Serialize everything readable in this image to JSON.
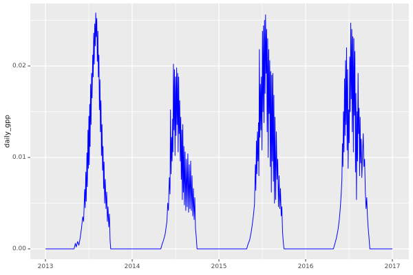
{
  "chart_data": {
    "type": "line",
    "title": "",
    "xlabel": "",
    "ylabel": "daily_gpp",
    "x_ticks": [
      "2013",
      "2014",
      "2015",
      "2016",
      "2017"
    ],
    "x_tick_values": [
      2013,
      2014,
      2015,
      2016,
      2017
    ],
    "y_ticks": [
      "0.00",
      "0.01",
      "0.02"
    ],
    "y_tick_values": [
      0,
      0.01,
      0.02
    ],
    "xlim": [
      2012.825,
      2017.19
    ],
    "ylim": [
      -0.00113,
      0.02684
    ],
    "grid": "major-and-minor",
    "minor_x": [
      2013.5,
      2014.5,
      2015.5,
      2016.5
    ],
    "minor_y": [
      0.005,
      0.015,
      0.025
    ],
    "legend": "none",
    "colors": {
      "panel_bg": "#EBEBEB",
      "grid": "#FFFFFF",
      "line": "#0000FF",
      "tick_mark": "#333333",
      "tick_label": "#4D4D4D",
      "axis_title": "#111111"
    },
    "series": [
      {
        "name": "daily_gpp",
        "points": [
          [
            2013.0,
            0
          ],
          [
            2013.33,
            0
          ],
          [
            2013.345,
            0.0006
          ],
          [
            2013.355,
            0.0002
          ],
          [
            2013.37,
            0.0008
          ],
          [
            2013.385,
            0.0004
          ],
          [
            2013.4,
            0.0012
          ],
          [
            2013.415,
            0.0022
          ],
          [
            2013.43,
            0.0035
          ],
          [
            2013.44,
            0.003
          ],
          [
            2013.452,
            0.0065
          ],
          [
            2013.458,
            0.0045
          ],
          [
            2013.465,
            0.0084
          ],
          [
            2013.47,
            0.0052
          ],
          [
            2013.478,
            0.0105
          ],
          [
            2013.483,
            0.0068
          ],
          [
            2013.49,
            0.013
          ],
          [
            2013.495,
            0.0088
          ],
          [
            2013.5,
            0.0145
          ],
          [
            2013.505,
            0.0092
          ],
          [
            2013.51,
            0.0158
          ],
          [
            2013.515,
            0.0112
          ],
          [
            2013.52,
            0.018
          ],
          [
            2013.526,
            0.0136
          ],
          [
            2013.532,
            0.0192
          ],
          [
            2013.538,
            0.0165
          ],
          [
            2013.545,
            0.0212
          ],
          [
            2013.55,
            0.0188
          ],
          [
            2013.556,
            0.0236
          ],
          [
            2013.562,
            0.0202
          ],
          [
            2013.568,
            0.0246
          ],
          [
            2013.574,
            0.0222
          ],
          [
            2013.58,
            0.0258
          ],
          [
            2013.586,
            0.0232
          ],
          [
            2013.592,
            0.0252
          ],
          [
            2013.598,
            0.0205
          ],
          [
            2013.604,
            0.0238
          ],
          [
            2013.61,
            0.0188
          ],
          [
            2013.616,
            0.0212
          ],
          [
            2013.622,
            0.0152
          ],
          [
            2013.628,
            0.0185
          ],
          [
            2013.634,
            0.0128
          ],
          [
            2013.64,
            0.0162
          ],
          [
            2013.646,
            0.0102
          ],
          [
            2013.652,
            0.0136
          ],
          [
            2013.658,
            0.0086
          ],
          [
            2013.664,
            0.0112
          ],
          [
            2013.67,
            0.0066
          ],
          [
            2013.676,
            0.0095
          ],
          [
            2013.682,
            0.005
          ],
          [
            2013.69,
            0.0076
          ],
          [
            2013.698,
            0.0044
          ],
          [
            2013.706,
            0.0062
          ],
          [
            2013.714,
            0.003
          ],
          [
            2013.722,
            0.0046
          ],
          [
            2013.73,
            0.0024
          ],
          [
            2013.738,
            0.0038
          ],
          [
            2013.745,
            0.001
          ],
          [
            2013.752,
            0.0
          ],
          [
            2014.33,
            0
          ],
          [
            2014.345,
            0.0005
          ],
          [
            2014.36,
            0.0009
          ],
          [
            2014.38,
            0.0016
          ],
          [
            2014.4,
            0.003
          ],
          [
            2014.41,
            0.005
          ],
          [
            2014.418,
            0.0042
          ],
          [
            2014.428,
            0.0078
          ],
          [
            2014.436,
            0.006
          ],
          [
            2014.442,
            0.0152
          ],
          [
            2014.448,
            0.0082
          ],
          [
            2014.454,
            0.0122
          ],
          [
            2014.46,
            0.0096
          ],
          [
            2014.466,
            0.0142
          ],
          [
            2014.47,
            0.0106
          ],
          [
            2014.476,
            0.0202
          ],
          [
            2014.482,
            0.013
          ],
          [
            2014.488,
            0.0196
          ],
          [
            2014.494,
            0.0102
          ],
          [
            2014.5,
            0.0188
          ],
          [
            2014.506,
            0.0124
          ],
          [
            2014.512,
            0.0198
          ],
          [
            2014.518,
            0.0136
          ],
          [
            2014.524,
            0.0192
          ],
          [
            2014.53,
            0.0106
          ],
          [
            2014.536,
            0.0188
          ],
          [
            2014.542,
            0.0126
          ],
          [
            2014.548,
            0.0162
          ],
          [
            2014.554,
            0.0096
          ],
          [
            2014.56,
            0.0144
          ],
          [
            2014.566,
            0.0076
          ],
          [
            2014.572,
            0.013
          ],
          [
            2014.578,
            0.0054
          ],
          [
            2014.584,
            0.0136
          ],
          [
            2014.59,
            0.0062
          ],
          [
            2014.596,
            0.0112
          ],
          [
            2014.602,
            0.0048
          ],
          [
            2014.61,
            0.0106
          ],
          [
            2014.618,
            0.0042
          ],
          [
            2014.626,
            0.0098
          ],
          [
            2014.634,
            0.0046
          ],
          [
            2014.642,
            0.0104
          ],
          [
            2014.65,
            0.004
          ],
          [
            2014.658,
            0.0092
          ],
          [
            2014.666,
            0.0044
          ],
          [
            2014.674,
            0.0096
          ],
          [
            2014.682,
            0.0042
          ],
          [
            2014.69,
            0.008
          ],
          [
            2014.698,
            0.0036
          ],
          [
            2014.706,
            0.0066
          ],
          [
            2014.714,
            0.0032
          ],
          [
            2014.722,
            0.0056
          ],
          [
            2014.73,
            0.0022
          ],
          [
            2014.738,
            0.0014
          ],
          [
            2014.748,
            0.0
          ],
          [
            2015.32,
            0
          ],
          [
            2015.335,
            0.0005
          ],
          [
            2015.355,
            0.001
          ],
          [
            2015.375,
            0.002
          ],
          [
            2015.395,
            0.0034
          ],
          [
            2015.41,
            0.0048
          ],
          [
            2015.42,
            0.0092
          ],
          [
            2015.426,
            0.0064
          ],
          [
            2015.432,
            0.0118
          ],
          [
            2015.438,
            0.0082
          ],
          [
            2015.444,
            0.0128
          ],
          [
            2015.45,
            0.0096
          ],
          [
            2015.456,
            0.0138
          ],
          [
            2015.461,
            0.008
          ],
          [
            2015.466,
            0.0218
          ],
          [
            2015.472,
            0.0122
          ],
          [
            2015.478,
            0.018
          ],
          [
            2015.484,
            0.013
          ],
          [
            2015.49,
            0.0188
          ],
          [
            2015.496,
            0.0108
          ],
          [
            2015.502,
            0.0238
          ],
          [
            2015.508,
            0.015
          ],
          [
            2015.514,
            0.0244
          ],
          [
            2015.52,
            0.0138
          ],
          [
            2015.526,
            0.025
          ],
          [
            2015.532,
            0.017
          ],
          [
            2015.538,
            0.0256
          ],
          [
            2015.544,
            0.0192
          ],
          [
            2015.55,
            0.024
          ],
          [
            2015.556,
            0.0128
          ],
          [
            2015.562,
            0.023
          ],
          [
            2015.568,
            0.01
          ],
          [
            2015.574,
            0.0218
          ],
          [
            2015.58,
            0.0148
          ],
          [
            2015.586,
            0.0206
          ],
          [
            2015.592,
            0.009
          ],
          [
            2015.598,
            0.0194
          ],
          [
            2015.604,
            0.0062
          ],
          [
            2015.61,
            0.019
          ],
          [
            2015.616,
            0.0096
          ],
          [
            2015.622,
            0.0192
          ],
          [
            2015.628,
            0.0074
          ],
          [
            2015.634,
            0.0168
          ],
          [
            2015.64,
            0.005
          ],
          [
            2015.646,
            0.0144
          ],
          [
            2015.654,
            0.0054
          ],
          [
            2015.662,
            0.0128
          ],
          [
            2015.67,
            0.0076
          ],
          [
            2015.678,
            0.0098
          ],
          [
            2015.686,
            0.0046
          ],
          [
            2015.694,
            0.008
          ],
          [
            2015.702,
            0.0044
          ],
          [
            2015.71,
            0.0066
          ],
          [
            2015.718,
            0.0036
          ],
          [
            2015.726,
            0.0046
          ],
          [
            2015.734,
            0.0018
          ],
          [
            2015.742,
            0.0008
          ],
          [
            2015.75,
            0.0
          ],
          [
            2016.32,
            0
          ],
          [
            2016.335,
            0.0005
          ],
          [
            2016.355,
            0.0012
          ],
          [
            2016.375,
            0.0022
          ],
          [
            2016.39,
            0.0034
          ],
          [
            2016.4,
            0.0046
          ],
          [
            2016.41,
            0.006
          ],
          [
            2016.418,
            0.0076
          ],
          [
            2016.424,
            0.0115
          ],
          [
            2016.43,
            0.009
          ],
          [
            2016.436,
            0.015
          ],
          [
            2016.442,
            0.0106
          ],
          [
            2016.448,
            0.0186
          ],
          [
            2016.454,
            0.0124
          ],
          [
            2016.46,
            0.0206
          ],
          [
            2016.466,
            0.0136
          ],
          [
            2016.472,
            0.022
          ],
          [
            2016.478,
            0.0108
          ],
          [
            2016.484,
            0.0196
          ],
          [
            2016.49,
            0.0088
          ],
          [
            2016.496,
            0.0152
          ],
          [
            2016.502,
            0.0116
          ],
          [
            2016.508,
            0.021
          ],
          [
            2016.514,
            0.015
          ],
          [
            2016.52,
            0.0247
          ],
          [
            2016.526,
            0.0164
          ],
          [
            2016.532,
            0.024
          ],
          [
            2016.538,
            0.0128
          ],
          [
            2016.544,
            0.0232
          ],
          [
            2016.55,
            0.0106
          ],
          [
            2016.556,
            0.023
          ],
          [
            2016.562,
            0.0146
          ],
          [
            2016.568,
            0.0216
          ],
          [
            2016.574,
            0.0084
          ],
          [
            2016.58,
            0.017
          ],
          [
            2016.586,
            0.0054
          ],
          [
            2016.592,
            0.015
          ],
          [
            2016.598,
            0.0096
          ],
          [
            2016.604,
            0.0192
          ],
          [
            2016.61,
            0.0126
          ],
          [
            2016.616,
            0.0154
          ],
          [
            2016.622,
            0.008
          ],
          [
            2016.628,
            0.0144
          ],
          [
            2016.634,
            0.0094
          ],
          [
            2016.64,
            0.012
          ],
          [
            2016.648,
            0.0078
          ],
          [
            2016.656,
            0.0104
          ],
          [
            2016.664,
            0.0126
          ],
          [
            2016.672,
            0.009
          ],
          [
            2016.68,
            0.0098
          ],
          [
            2016.688,
            0.0064
          ],
          [
            2016.696,
            0.0044
          ],
          [
            2016.704,
            0.0056
          ],
          [
            2016.712,
            0.0036
          ],
          [
            2016.72,
            0.0024
          ],
          [
            2016.73,
            0.0013
          ],
          [
            2016.74,
            0.0
          ],
          [
            2017.0,
            0
          ]
        ]
      }
    ]
  }
}
